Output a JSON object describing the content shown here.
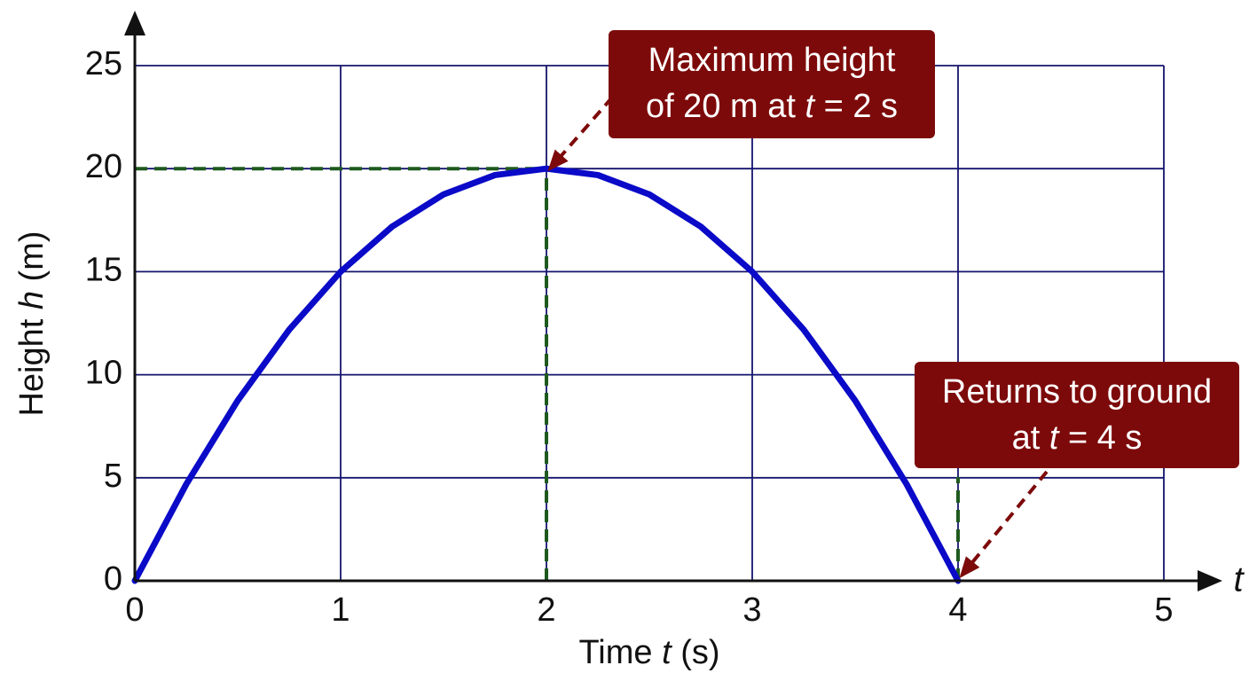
{
  "chart_data": {
    "type": "line",
    "xlabel": [
      "Time ",
      "t",
      " (s)"
    ],
    "ylabel": [
      "Height ",
      "h",
      " (m)"
    ],
    "xaxis_symbol": "t",
    "x": [
      0,
      0.25,
      0.5,
      0.75,
      1,
      1.25,
      1.5,
      1.75,
      2,
      2.25,
      2.5,
      2.75,
      3,
      3.25,
      3.5,
      3.75,
      4
    ],
    "series": [
      {
        "color": "#0a0ac8",
        "values": [
          0,
          4.6875,
          8.75,
          12.1875,
          15,
          17.1875,
          18.75,
          19.6875,
          20,
          19.6875,
          18.75,
          17.1875,
          15,
          12.1875,
          8.75,
          4.6875,
          0
        ]
      }
    ],
    "xlim": [
      0,
      5
    ],
    "ylim": [
      0,
      25
    ],
    "xticks": [
      0,
      1,
      2,
      3,
      4,
      5
    ],
    "yticks": [
      0,
      5,
      10,
      15,
      20,
      25
    ],
    "grid": true,
    "grid_color": "#14146e",
    "annotations": [
      {
        "lines": [
          [
            "Maximum height"
          ],
          [
            "of 20 m at ",
            "t",
            " = 2 s"
          ]
        ],
        "point": [
          2,
          20
        ],
        "color": "#7d0a0a",
        "guide_color": "#1e5a1e"
      },
      {
        "lines": [
          [
            "Returns to ground"
          ],
          [
            "at ",
            "t",
            " = 4 s"
          ]
        ],
        "point": [
          4,
          0
        ],
        "color": "#7d0a0a",
        "guide_color": "#1e5a1e"
      }
    ]
  }
}
